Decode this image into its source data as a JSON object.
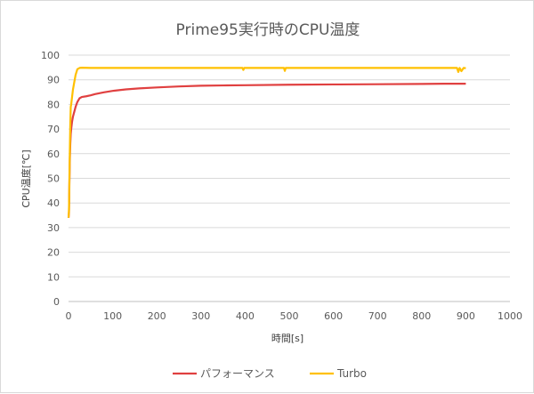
{
  "chart_data": {
    "type": "line",
    "title": "Prime95実行時のCPU温度",
    "xlabel": "時間[s]",
    "ylabel": "CPU温度[℃]",
    "xlim": [
      0,
      1000
    ],
    "ylim": [
      0,
      100
    ],
    "xticks": [
      "0",
      "100",
      "200",
      "300",
      "400",
      "500",
      "600",
      "700",
      "800",
      "900",
      "1000"
    ],
    "yticks": [
      "0",
      "10",
      "20",
      "30",
      "40",
      "50",
      "60",
      "70",
      "80",
      "90",
      "100"
    ],
    "grid": "horizontal",
    "legend_position": "bottom",
    "series": [
      {
        "name": "パフォーマンス",
        "color": "#e04040",
        "x": [
          0,
          1,
          2,
          3,
          4,
          5,
          6,
          8,
          10,
          13,
          16,
          20,
          25,
          30,
          40,
          50,
          60,
          80,
          100,
          130,
          160,
          200,
          250,
          300,
          350,
          400,
          500,
          600,
          700,
          800,
          850,
          900
        ],
        "y": [
          34,
          36,
          48,
          58,
          64,
          68,
          70,
          73,
          75,
          77,
          79,
          81,
          82.5,
          83,
          83.3,
          83.7,
          84.2,
          84.9,
          85.5,
          86.1,
          86.5,
          86.9,
          87.3,
          87.6,
          87.7,
          87.8,
          88,
          88.1,
          88.2,
          88.3,
          88.4,
          88.4
        ]
      },
      {
        "name": "Turbo",
        "color": "#ffc000",
        "x": [
          0,
          1,
          2,
          3,
          4,
          5,
          6,
          8,
          10,
          13,
          16,
          20,
          25,
          30,
          50,
          100,
          200,
          300,
          394,
          396,
          398,
          400,
          488,
          490,
          492,
          500,
          600,
          700,
          800,
          880,
          883,
          886,
          890,
          895,
          900
        ],
        "y": [
          34,
          37,
          50,
          62,
          72,
          79,
          80,
          83,
          86,
          89,
          92,
          94.3,
          94.8,
          94.9,
          94.8,
          94.8,
          94.8,
          94.8,
          94.8,
          94.0,
          94.8,
          94.8,
          94.8,
          93.6,
          94.8,
          94.8,
          94.8,
          94.8,
          94.8,
          94.8,
          93.2,
          94.8,
          93.5,
          94.8,
          94.7
        ]
      }
    ]
  }
}
